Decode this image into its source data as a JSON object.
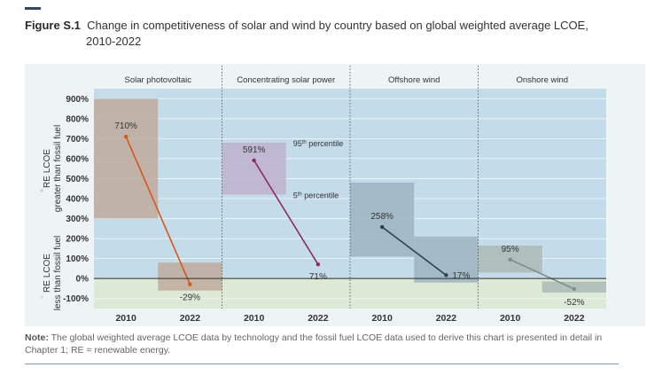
{
  "figure": {
    "label": "Figure S.1",
    "title_line1": "Change in competitiveness of solar and wind by country based on global weighted average LCOE,",
    "title_line2": "2010-2022"
  },
  "note": {
    "label": "Note:",
    "text": " The global weighted average LCOE data by technology and the fossil fuel LCOE data used to derive this chart is presented in detail in Chapter 1; RE = renewable energy."
  },
  "colors": {
    "upper_bg": "#c4dcea",
    "lower_bg": "#dbe9d6",
    "panel_bg": "#eef3f6",
    "box_pv": "#bfaa9c",
    "box_csp": "#c0b2cf",
    "box_off": "#9eb3bf",
    "box_on": "#aabab6",
    "line_pv": "#d4571c",
    "line_csp": "#8b2a66",
    "line_off": "#2c4050",
    "line_on": "#7d8e8c"
  },
  "chart_data": {
    "type": "line",
    "ylim": [
      -150,
      950
    ],
    "yticks": [
      "900%",
      "800%",
      "700%",
      "600%",
      "500%",
      "400%",
      "300%",
      "200%",
      "100%",
      "0%",
      "-100%"
    ],
    "ytick_values": [
      900,
      800,
      700,
      600,
      500,
      400,
      300,
      200,
      100,
      0,
      -100
    ],
    "ylabel_upper": [
      "RE LCOE",
      "greater than fossil fuel"
    ],
    "ylabel_lower": [
      "RE LCOE",
      "less than fossil fuel"
    ],
    "categories": [
      "2010",
      "2022"
    ],
    "annotations": {
      "p95": "95th percentile",
      "p5": "5th percentile",
      "sup95": "th",
      "sup5": "th"
    },
    "panels": [
      {
        "name": "Solar photovoltaic",
        "values": [
          710,
          -29
        ],
        "labels": [
          "710%",
          "-29%"
        ],
        "box2010": [
          300,
          900
        ],
        "box2022": [
          -60,
          80
        ],
        "line_color_key": "line_pv",
        "box_color_key": "box_pv"
      },
      {
        "name": "Concentrating solar power",
        "values": [
          591,
          71
        ],
        "labels": [
          "591%",
          "71%"
        ],
        "box2010": [
          420,
          680
        ],
        "box2022": null,
        "line_color_key": "line_csp",
        "box_color_key": "box_csp"
      },
      {
        "name": "Offshore wind",
        "values": [
          258,
          17
        ],
        "labels": [
          "258%",
          "17%"
        ],
        "box2010": [
          110,
          480
        ],
        "box2022": [
          -20,
          210
        ],
        "line_color_key": "line_off",
        "box_color_key": "box_off"
      },
      {
        "name": "Onshore wind",
        "values": [
          95,
          -52
        ],
        "labels": [
          "95%",
          "-52%"
        ],
        "box2010": [
          30,
          165
        ],
        "box2022": [
          -70,
          -15
        ],
        "line_color_key": "line_on",
        "box_color_key": "box_on"
      }
    ]
  }
}
